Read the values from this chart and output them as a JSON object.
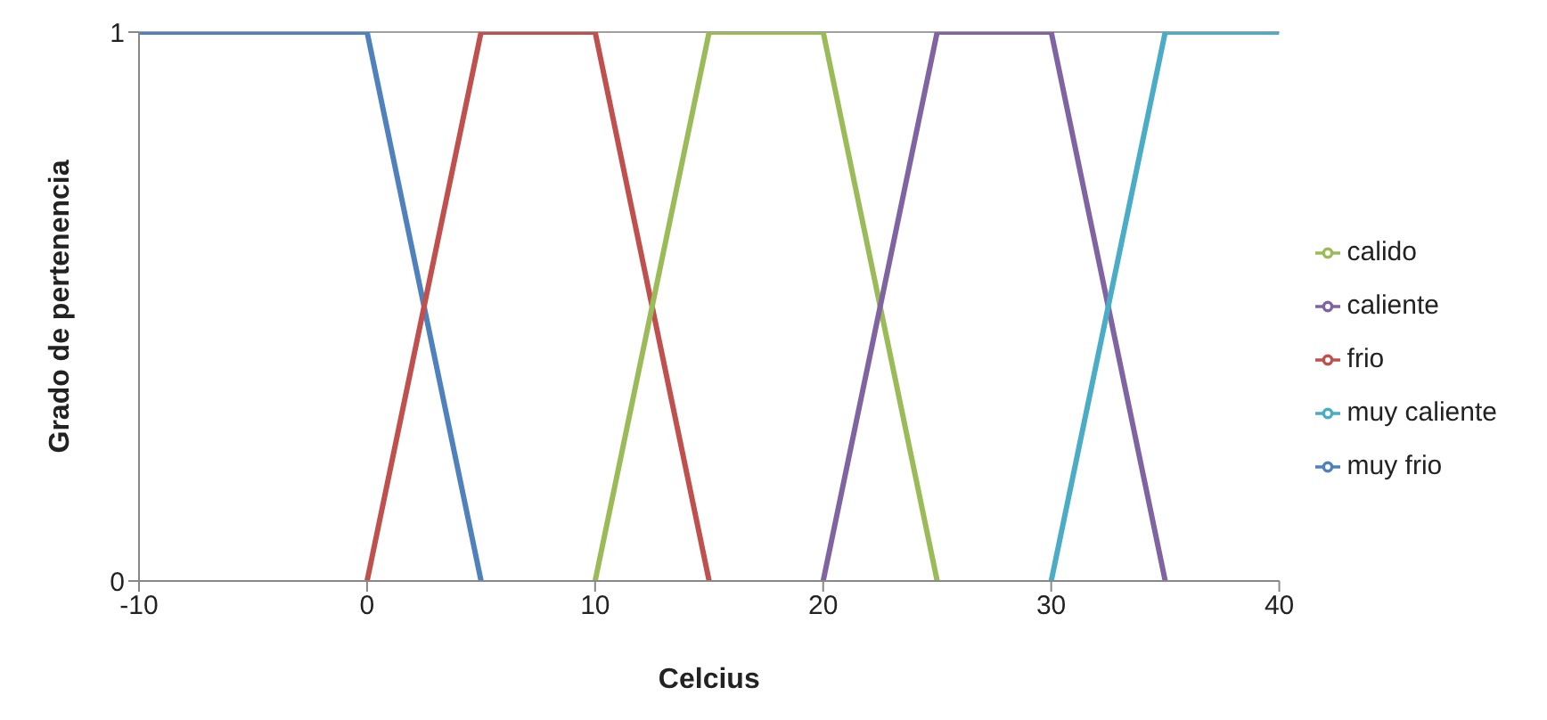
{
  "chart_data": {
    "type": "line",
    "xlabel": "Celcius",
    "ylabel": "Grado de pertenencia",
    "xlim": [
      -10,
      40
    ],
    "xticks": [
      -10,
      0,
      10,
      20,
      30,
      40
    ],
    "ylim": [
      0,
      1
    ],
    "yticks": [
      0,
      1
    ],
    "grid": "y",
    "legend": "right",
    "marker": "none",
    "line_style": "solid",
    "series": [
      {
        "name": "muy frio",
        "color": "#4f81bd",
        "x": [
          -10,
          0,
          5
        ],
        "values": [
          1,
          1,
          0
        ]
      },
      {
        "name": "frio",
        "color": "#c0504d",
        "x": [
          0,
          5,
          10,
          15
        ],
        "values": [
          0,
          1,
          1,
          0
        ]
      },
      {
        "name": "calido",
        "color": "#9bbb59",
        "x": [
          10,
          15,
          20,
          25
        ],
        "values": [
          0,
          1,
          1,
          0
        ]
      },
      {
        "name": "caliente",
        "color": "#8064a2",
        "x": [
          20,
          25,
          30,
          35
        ],
        "values": [
          0,
          1,
          1,
          0
        ]
      },
      {
        "name": "muy caliente",
        "color": "#4bacc6",
        "x": [
          30,
          35,
          40
        ],
        "values": [
          0,
          1,
          1
        ]
      }
    ]
  }
}
